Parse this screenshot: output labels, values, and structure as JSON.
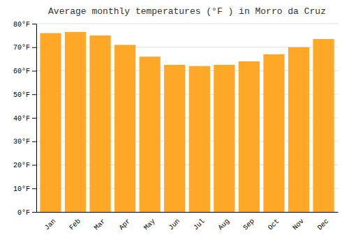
{
  "chart_data": {
    "type": "bar",
    "title": "Average monthly temperatures (°F ) in Morro da Cruz",
    "categories": [
      "Jan",
      "Feb",
      "Mar",
      "Apr",
      "May",
      "Jun",
      "Jul",
      "Aug",
      "Sep",
      "Oct",
      "Nov",
      "Dec"
    ],
    "values": [
      76,
      76.5,
      75,
      71,
      66,
      62.5,
      62,
      62.5,
      64,
      67,
      70,
      73.5
    ],
    "color": "#FFA726",
    "ylim": [
      0,
      80
    ],
    "yticks": [
      {
        "value": 0,
        "label": "0°F"
      },
      {
        "value": 10,
        "label": "10°F"
      },
      {
        "value": 20,
        "label": "20°F"
      },
      {
        "value": 30,
        "label": "30°F"
      },
      {
        "value": 40,
        "label": "40°F"
      },
      {
        "value": 50,
        "label": "50°F"
      },
      {
        "value": 60,
        "label": "60°F"
      },
      {
        "value": 70,
        "label": "70°F"
      },
      {
        "value": 80,
        "label": "80°F"
      }
    ],
    "grid": true
  }
}
